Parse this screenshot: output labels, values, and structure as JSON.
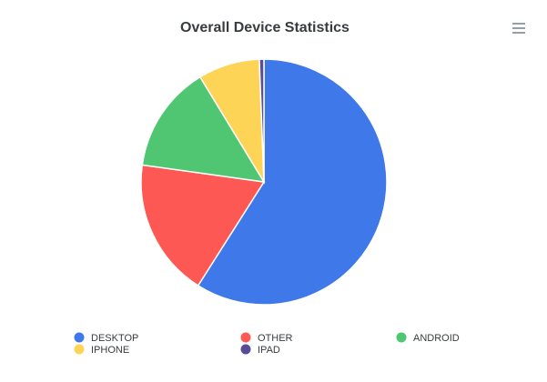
{
  "chart_data": {
    "type": "pie",
    "title": "Overall Device Statistics",
    "categories": [
      "DESKTOP",
      "OTHER",
      "ANDROID",
      "IPHONE",
      "IPAD"
    ],
    "values": [
      59,
      18.2,
      14.1,
      8.1,
      0.6
    ],
    "colors": [
      "#3f78e8",
      "#fd5853",
      "#50c673",
      "#fed457",
      "#5a4a9a"
    ],
    "legend": "bottom"
  }
}
